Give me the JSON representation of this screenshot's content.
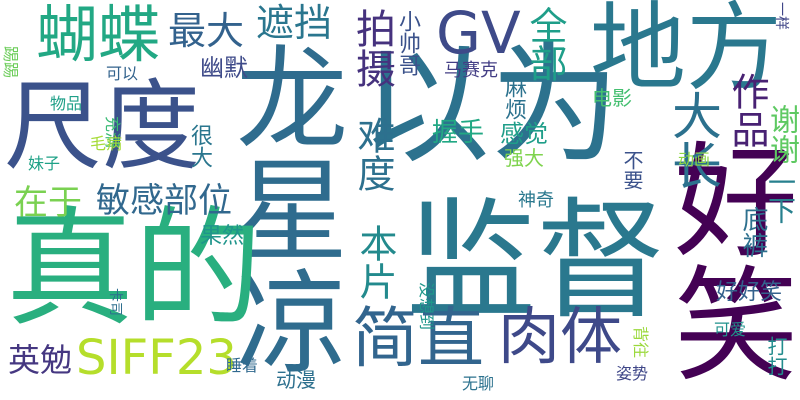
{
  "cloud": {
    "background": "#ffffff",
    "words": [
      {
        "text": "以为",
        "color": "#2c728e"
      },
      {
        "text": "龙星凉",
        "color": "#2f6c8e"
      },
      {
        "text": "真的",
        "color": "#29af7f"
      },
      {
        "text": "好笑",
        "color": "#440154"
      },
      {
        "text": "监督",
        "color": "#2a788e"
      },
      {
        "text": "尺度",
        "color": "#3b528b"
      },
      {
        "text": "地方",
        "color": "#2a788e"
      },
      {
        "text": "蝴蝶",
        "color": "#22a884"
      },
      {
        "text": "GV",
        "color": "#3e4a89"
      },
      {
        "text": "肉体",
        "color": "#3e4989"
      },
      {
        "text": "简直",
        "color": "#32658e"
      },
      {
        "text": "SIFF23",
        "color": "#b5de2b"
      },
      {
        "text": "大长",
        "color": "#2c718e"
      },
      {
        "text": "拍摄",
        "color": "#46327e"
      },
      {
        "text": "最大",
        "color": "#33628d"
      },
      {
        "text": "遮挡",
        "color": "#2a768e"
      },
      {
        "text": "全部",
        "color": "#1f9e89"
      },
      {
        "text": "作品",
        "color": "#482173"
      },
      {
        "text": "难度",
        "color": "#2d708e"
      },
      {
        "text": "本片",
        "color": "#238a8d"
      },
      {
        "text": "敏感部位",
        "color": "#31688e"
      },
      {
        "text": "在于",
        "color": "#7ad151"
      },
      {
        "text": "英勉",
        "color": "#453781"
      },
      {
        "text": "谢谢",
        "color": "#5ec962"
      },
      {
        "text": "一下",
        "color": "#27808e"
      },
      {
        "text": "底裤",
        "color": "#2d708e"
      },
      {
        "text": "好好笑",
        "color": "#34618d"
      },
      {
        "text": "小帅哥",
        "color": "#3b528b"
      },
      {
        "text": "幽默",
        "color": "#3e4a89"
      },
      {
        "text": "马赛克",
        "color": "#433e85"
      },
      {
        "text": "麻烦",
        "color": "#2c728e"
      },
      {
        "text": "握手",
        "color": "#22a884"
      },
      {
        "text": "感觉",
        "color": "#1f9e89"
      },
      {
        "text": "强大",
        "color": "#7fd34e"
      },
      {
        "text": "电影",
        "color": "#44bf70"
      },
      {
        "text": "不要",
        "color": "#3b528b"
      },
      {
        "text": "动画",
        "color": "#8fd744"
      },
      {
        "text": "神奇",
        "color": "#2a788e"
      },
      {
        "text": "很大",
        "color": "#2a768e"
      },
      {
        "text": "果然",
        "color": "#1f958b"
      },
      {
        "text": "充满",
        "color": "#3bbb75"
      },
      {
        "text": "毛病",
        "color": "#a5db36"
      },
      {
        "text": "物品",
        "color": "#1fa088"
      },
      {
        "text": "可以",
        "color": "#33638d"
      },
      {
        "text": "踢踢",
        "color": "#6ccd5a"
      },
      {
        "text": "妹子",
        "color": "#1fa287"
      },
      {
        "text": "卡司",
        "color": "#2e6f8e"
      },
      {
        "text": "没想到",
        "color": "#1f978b"
      },
      {
        "text": "背往",
        "color": "#9bd93c"
      },
      {
        "text": "可爱",
        "color": "#20928c"
      },
      {
        "text": "睡着",
        "color": "#30698e"
      },
      {
        "text": "动漫",
        "color": "#2d708e"
      },
      {
        "text": "姿势",
        "color": "#3f4788"
      },
      {
        "text": "无聊",
        "color": "#2c728e"
      },
      {
        "text": "打打",
        "color": "#228c8d"
      },
      {
        "text": "一样",
        "color": "#404688"
      }
    ]
  }
}
